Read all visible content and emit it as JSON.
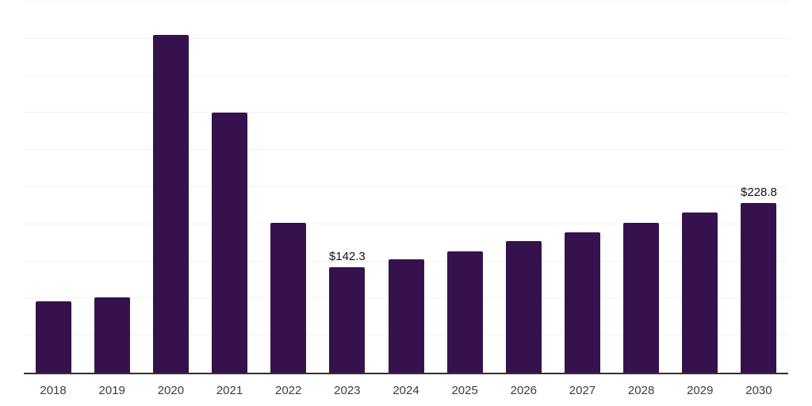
{
  "chart_data": {
    "type": "bar",
    "title": "",
    "xlabel": "",
    "ylabel": "",
    "categories": [
      "2018",
      "2019",
      "2020",
      "2021",
      "2022",
      "2023",
      "2024",
      "2025",
      "2026",
      "2027",
      "2028",
      "2029",
      "2030"
    ],
    "values": [
      96,
      102,
      455,
      350,
      202,
      142.3,
      153,
      164,
      177,
      189,
      202,
      216,
      228.8
    ],
    "annotations": [
      {
        "index": 5,
        "text": "$142.3"
      },
      {
        "index": 12,
        "text": "$228.8"
      }
    ],
    "ylim": [
      0,
      500
    ],
    "grid_step": 50,
    "grid": "horizontal-only",
    "legend": "none",
    "y_axis_labels": "none",
    "colors": {
      "bar": "#35124e",
      "gridline": "#f2f2f2",
      "axis_line": "#333333",
      "x_label": "#3c3c3c",
      "data_label": "#111111",
      "background": "#ffffff"
    }
  }
}
